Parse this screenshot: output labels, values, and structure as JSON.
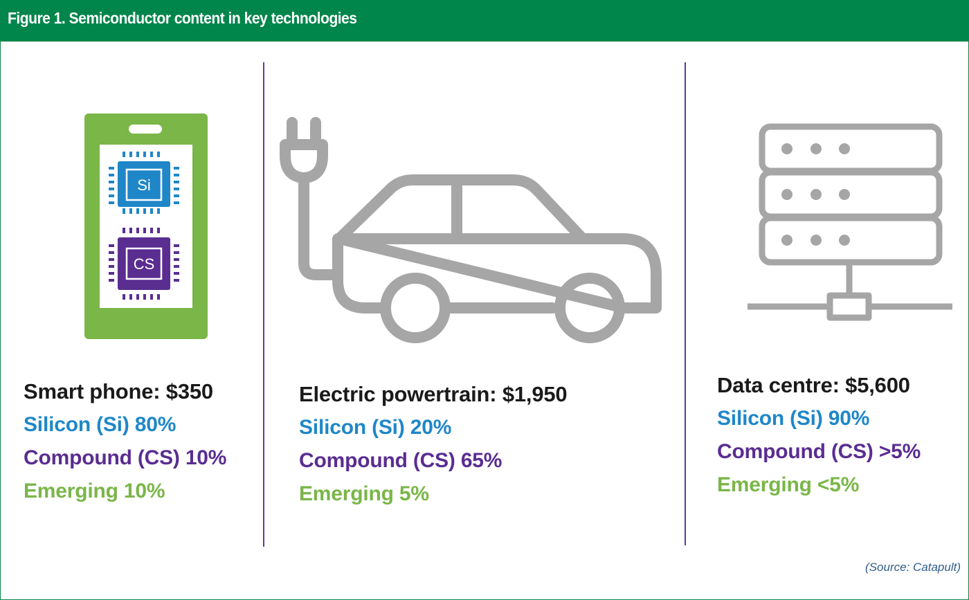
{
  "header": {
    "title": "Figure 1. Semiconductor content in key technologies",
    "background_color": "#00854a"
  },
  "colors": {
    "silicon": "#1f87c8",
    "compound": "#5a2d91",
    "emerging": "#7ab648",
    "divider": "#5b3a9a",
    "icon_grey": "#a6a6a6",
    "phone_green": "#7ab648"
  },
  "icons": {
    "phone": {
      "name": "smartphone-chip-icon",
      "chip_si_label": "Si",
      "chip_cs_label": "CS"
    },
    "car": {
      "name": "electric-car-plug-icon"
    },
    "server": {
      "name": "server-rack-icon"
    }
  },
  "panels": [
    {
      "title": "Smart phone: $350",
      "silicon": "Silicon (Si) 80%",
      "compound": "Compound (CS) 10%",
      "emerging": "Emerging 10%"
    },
    {
      "title": "Electric powertrain: $1,950",
      "silicon": "Silicon (Si) 20%",
      "compound": "Compound (CS) 65%",
      "emerging": "Emerging 5%"
    },
    {
      "title": "Data centre: $5,600",
      "silicon": "Silicon (Si) 90%",
      "compound": "Compound (CS) >5%",
      "emerging": "Emerging <5%"
    }
  ],
  "source": "(Source: Catapult)"
}
